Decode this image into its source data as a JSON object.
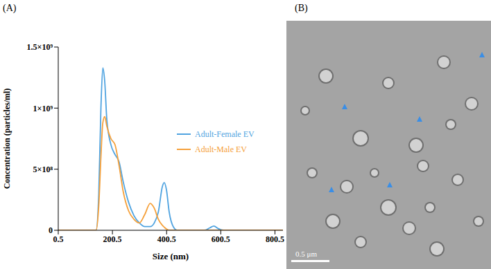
{
  "chart_data": {
    "type": "line",
    "panel_label": "(A)",
    "x_label": "Size (nm)",
    "y_label": "Concentration (particles/ml)",
    "x": [
      0.5,
      100,
      140,
      150,
      158,
      165,
      172,
      180,
      195,
      210,
      225,
      240,
      260,
      280,
      300,
      320,
      340,
      355,
      370,
      385,
      392,
      400,
      410,
      425,
      440,
      540,
      560,
      575,
      590,
      610,
      850
    ],
    "series": [
      {
        "name": "Adult-Female EV",
        "color": "#4fa3e0",
        "values": [
          0,
          0,
          0,
          300000000,
          1000000000,
          1330000000,
          1220000000,
          900000000,
          700000000,
          620000000,
          560000000,
          400000000,
          230000000,
          120000000,
          60000000,
          30000000,
          30000000,
          60000000,
          150000000,
          360000000,
          390000000,
          330000000,
          150000000,
          30000000,
          0,
          0,
          20000000,
          35000000,
          15000000,
          0,
          0
        ]
      },
      {
        "name": "Adult-Male EV",
        "color": "#f5a03a",
        "values": [
          0,
          0,
          0,
          200000000,
          600000000,
          880000000,
          930000000,
          850000000,
          750000000,
          700000000,
          530000000,
          320000000,
          160000000,
          90000000,
          60000000,
          130000000,
          220000000,
          180000000,
          90000000,
          40000000,
          25000000,
          10000000,
          0,
          0,
          0,
          0,
          0,
          0,
          0,
          0,
          0
        ]
      }
    ],
    "xlim": [
      0.5,
      830
    ],
    "xticks": [
      0.5,
      200.5,
      400.5,
      600.5,
      800.5
    ],
    "ylim": [
      0,
      1500000000
    ],
    "yticks": [
      0,
      {
        "value": 500000000,
        "label": "5×10⁸"
      },
      {
        "value": 1000000000,
        "label": "1×10⁹"
      },
      {
        "value": 1500000000,
        "label": "1.5×10⁹"
      }
    ],
    "grid": false,
    "legend": "right"
  },
  "image_panel": {
    "panel_label": "(B)",
    "scale_bar": "0.5 μm"
  }
}
